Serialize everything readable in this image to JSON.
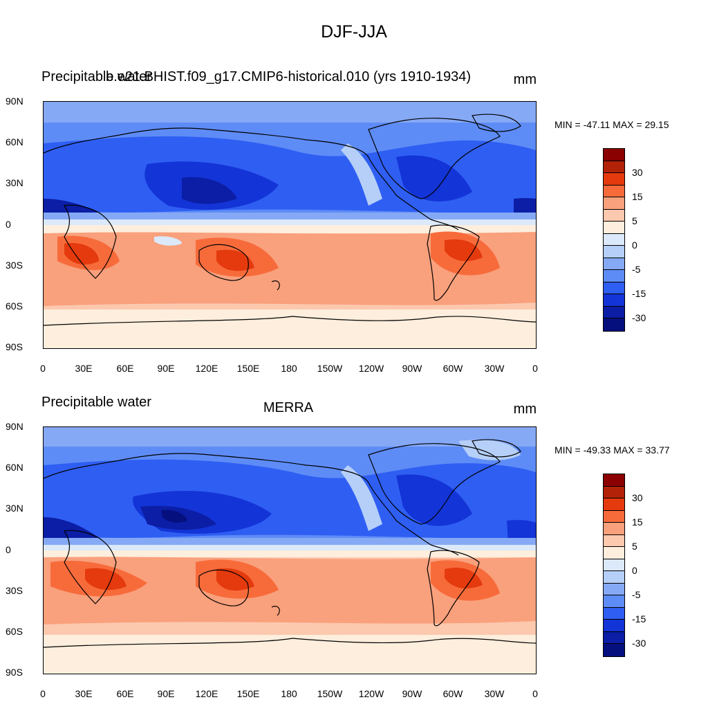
{
  "main_title": "DJF-JJA",
  "axes": {
    "y_ticks": [
      "90N",
      "60N",
      "30N",
      "0",
      "30S",
      "60S",
      "90S"
    ],
    "x_ticks": [
      "0",
      "30E",
      "60E",
      "90E",
      "120E",
      "150E",
      "180",
      "150W",
      "120W",
      "90W",
      "60W",
      "30W",
      "0"
    ]
  },
  "colorbar": {
    "colors": [
      "#8b0000",
      "#b22208",
      "#e43a0e",
      "#f76b3b",
      "#f9a07c",
      "#fcc8ae",
      "#fdeedd",
      "#dbe9fb",
      "#b5cff8",
      "#86a9f6",
      "#5e8cf6",
      "#2f5ef3",
      "#1334d6",
      "#0b1ea5",
      "#050f7e"
    ],
    "labels": [
      "30",
      "15",
      "5",
      "0",
      "-5",
      "-15",
      "-30"
    ]
  },
  "panels": [
    {
      "id": "model",
      "left_label": "Precipitable water",
      "center_label": "b.e21.BHIST.f09_g17.CMIP6-historical.010 (yrs 1910-1934)",
      "units": "mm",
      "min_max": "MIN = -47.11 MAX =  29.15"
    },
    {
      "id": "obs",
      "left_label": "Precipitable water",
      "center_label": "MERRA",
      "units": "mm",
      "min_max": "MIN = -49.33 MAX =  33.77"
    }
  ],
  "chart_data": {
    "type": "heatmap",
    "title": "DJF-JJA",
    "variable": "Precipitable water",
    "units": "mm",
    "colorbar_levels": [
      -30,
      -15,
      -5,
      0,
      5,
      15,
      30
    ],
    "panels": [
      {
        "name": "b.e21.BHIST.f09_g17.CMIP6-historical.010 (yrs 1910-1934)",
        "min": -47.11,
        "max": 29.15
      },
      {
        "name": "MERRA",
        "min": -49.33,
        "max": 33.77
      }
    ],
    "x_range": [
      0,
      360
    ],
    "y_range": [
      -90,
      90
    ]
  }
}
